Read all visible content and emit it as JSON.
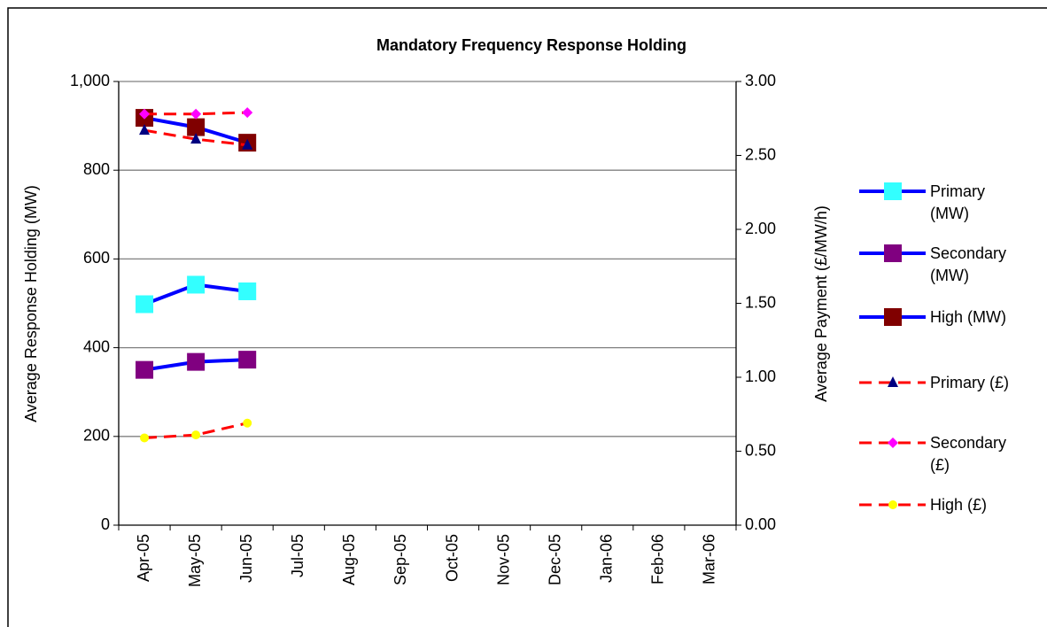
{
  "chart_data": {
    "type": "line",
    "title": "Mandatory Frequency Response Holding",
    "y_label": "Average Response Holding (MW)",
    "y2_label": "Average Payment (£/MW/h)",
    "categories": [
      "Apr-05",
      "May-05",
      "Jun-05",
      "Jul-05",
      "Aug-05",
      "Sep-05",
      "Oct-05",
      "Nov-05",
      "Dec-05",
      "Jan-06",
      "Feb-06",
      "Mar-06"
    ],
    "ylim": [
      0,
      1000
    ],
    "yticks": [
      0,
      200,
      400,
      600,
      800,
      {
        "value": 1000,
        "label": "1,000"
      }
    ],
    "y2lim": [
      0,
      3
    ],
    "y2ticks": [
      {
        "value": 0,
        "label": "0.00"
      },
      {
        "value": 0.5,
        "label": "0.50"
      },
      {
        "value": 1,
        "label": "1.00"
      },
      {
        "value": 1.5,
        "label": "1.50"
      },
      {
        "value": 2,
        "label": "2.00"
      },
      {
        "value": 2.5,
        "label": "2.50"
      },
      {
        "value": 3,
        "label": "3.00"
      }
    ],
    "grid": true,
    "legend": "right",
    "series": [
      {
        "name": "Primary (MW)",
        "color": "#0000ff",
        "marker_color": "#33ffff",
        "marker": "square",
        "values": [
          498,
          542,
          527,
          null,
          null,
          null,
          null,
          null,
          null,
          null,
          null,
          null
        ]
      },
      {
        "name": "Secondary (MW)",
        "color": "#0000ff",
        "marker_color": "#800080",
        "marker": "square",
        "values": [
          350,
          368,
          373,
          null,
          null,
          null,
          null,
          null,
          null,
          null,
          null,
          null
        ]
      },
      {
        "name": "High (MW)",
        "color": "#0000ff",
        "marker_color": "#800000",
        "marker": "square",
        "values": [
          918,
          897,
          862,
          null,
          null,
          null,
          null,
          null,
          null,
          null,
          null,
          null
        ]
      },
      {
        "name": "Primary (£)",
        "color": "#ff0000",
        "marker_color": "#000080",
        "marker": "triangle",
        "dashed": true,
        "axis": "y2",
        "values": [
          2.67,
          2.61,
          2.57,
          null,
          null,
          null,
          null,
          null,
          null,
          null,
          null,
          null
        ]
      },
      {
        "name": "Secondary (£)",
        "color": "#ff0000",
        "marker_color": "#ff00ff",
        "marker": "diamond",
        "dashed": true,
        "axis": "y2",
        "values": [
          2.78,
          2.78,
          2.79,
          null,
          null,
          null,
          null,
          null,
          null,
          null,
          null,
          null
        ]
      },
      {
        "name": "High (£)",
        "color": "#ff0000",
        "marker_color": "#ffff00",
        "marker": "circle",
        "dashed": true,
        "axis": "y2",
        "values": [
          0.59,
          0.61,
          0.69,
          null,
          null,
          null,
          null,
          null,
          null,
          null,
          null,
          null
        ]
      }
    ]
  }
}
